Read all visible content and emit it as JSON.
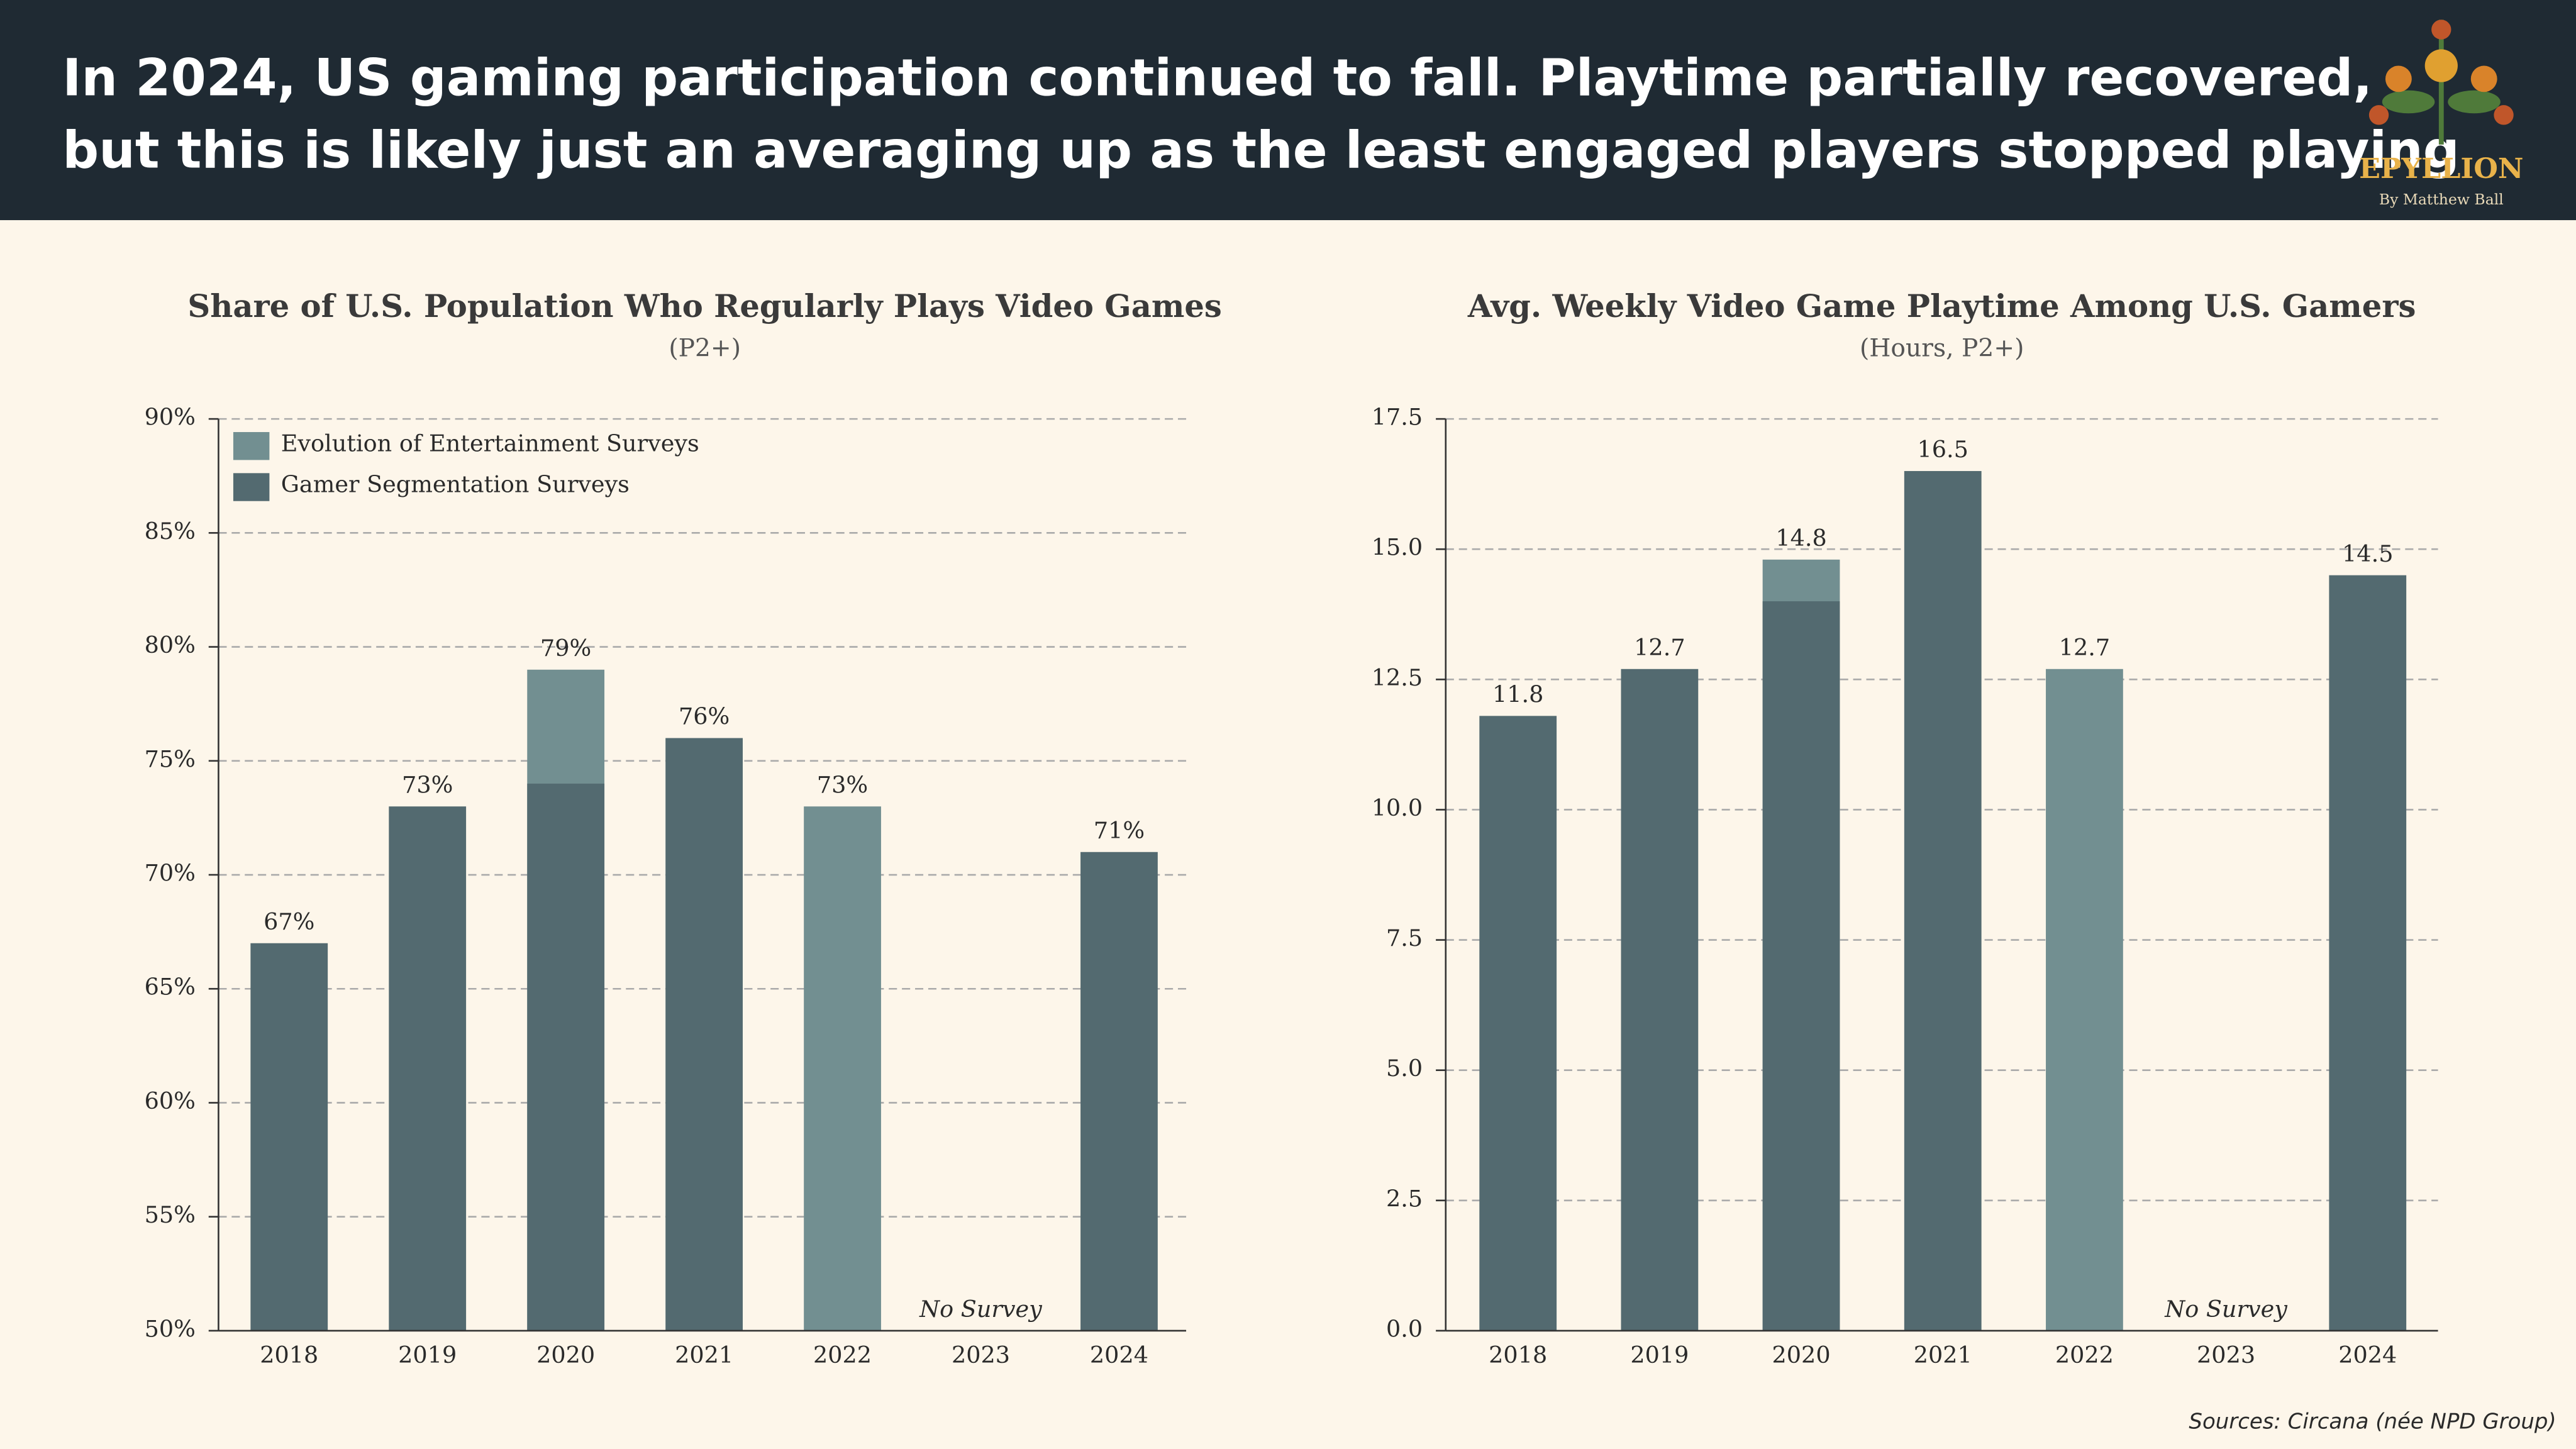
{
  "header": {
    "title_lines": [
      "In 2024, US gaming participation continued to fall. Playtime partially recovered,",
      "but this is likely just an averaging up as the least engaged players stopped playing"
    ],
    "logo": "EPYLLION",
    "byline": "By Matthew Ball"
  },
  "chart_data": [
    {
      "type": "bar",
      "title": "Share of U.S. Population Who Regularly Plays Video Games",
      "subtitle": "(P2+)",
      "categories": [
        "2018",
        "2019",
        "2020",
        "2021",
        "2022",
        "2023",
        "2024"
      ],
      "series": [
        {
          "name": "Evolution of Entertainment Surveys",
          "color": "#728f91",
          "values": [
            null,
            null,
            79,
            null,
            73,
            null,
            null
          ],
          "value_labels": [
            null,
            null,
            "79%",
            null,
            "73%",
            null,
            null
          ]
        },
        {
          "name": "Gamer Segmentation Surveys",
          "color": "#536a70",
          "values": [
            67,
            73,
            74,
            76,
            null,
            null,
            71
          ],
          "value_labels": [
            "67%",
            "73%",
            null,
            "76%",
            null,
            null,
            "71%"
          ]
        }
      ],
      "annotation": "No Survey",
      "ylim": [
        50,
        90
      ],
      "yticks": [
        {
          "value": 50,
          "label": "50%"
        },
        {
          "value": 55,
          "label": "55%"
        },
        {
          "value": 60,
          "label": "60%"
        },
        {
          "value": 65,
          "label": "65%"
        },
        {
          "value": 70,
          "label": "70%"
        },
        {
          "value": 75,
          "label": "75%"
        },
        {
          "value": 80,
          "label": "80%"
        },
        {
          "value": 85,
          "label": "85%"
        },
        {
          "value": 90,
          "label": "90%"
        }
      ],
      "grid": true,
      "legend": "upper left"
    },
    {
      "type": "bar",
      "title": "Avg. Weekly Video Game Playtime Among U.S. Gamers",
      "subtitle": "(Hours, P2+)",
      "categories": [
        "2018",
        "2019",
        "2020",
        "2021",
        "2022",
        "2023",
        "2024"
      ],
      "series": [
        {
          "color": "#728f91",
          "values": [
            null,
            null,
            14.8,
            null,
            12.7,
            null,
            null
          ],
          "value_labels": [
            null,
            null,
            "14.8",
            null,
            "12.7",
            null,
            null
          ]
        },
        {
          "color": "#536a70",
          "values": [
            11.8,
            12.7,
            14.0,
            16.5,
            null,
            null,
            14.5
          ],
          "value_labels": [
            "11.8",
            "12.7",
            null,
            "16.5",
            null,
            null,
            "14.5"
          ]
        }
      ],
      "annotation": "No Survey",
      "ylim": [
        0,
        17.5
      ],
      "yticks": [
        {
          "value": 0,
          "label": "0.0"
        },
        2.5,
        {
          "value": 5,
          "label": "5.0"
        },
        7.5,
        {
          "value": 10,
          "label": "10.0"
        },
        12.5,
        {
          "value": 15,
          "label": "15.0"
        },
        17.5
      ],
      "grid": true
    }
  ],
  "footer": {
    "source": "Sources: Circana (née NPD Group)"
  }
}
